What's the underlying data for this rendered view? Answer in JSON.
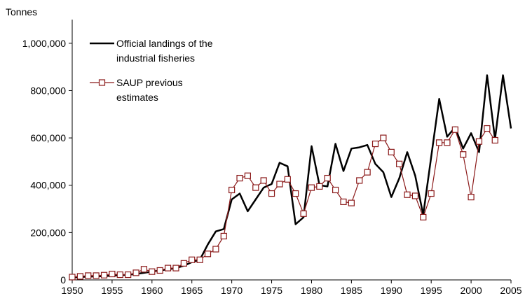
{
  "chart_data": {
    "type": "line",
    "ylabel": "Tonnes",
    "xlim": [
      1950,
      2005
    ],
    "ylim": [
      0,
      1100000
    ],
    "x_ticks": [
      "1950",
      "1955",
      "1960",
      "1965",
      "1970",
      "1975",
      "1980",
      "1985",
      "1990",
      "1995",
      "2000",
      "2005"
    ],
    "y_ticks": [
      "0",
      "200,000",
      "400,000",
      "600,000",
      "800,000",
      "1,000,000"
    ],
    "grid": false,
    "legend_position": "top-left",
    "series": [
      {
        "name": "Official landings of the industrial fisheries",
        "legend_lines": [
          "Official landings of the",
          "industrial fisheries"
        ],
        "color": "#000000",
        "marker": "none",
        "points": [
          [
            1950,
            10000
          ],
          [
            1951,
            12000
          ],
          [
            1952,
            14000
          ],
          [
            1953,
            15000
          ],
          [
            1954,
            16000
          ],
          [
            1955,
            18000
          ],
          [
            1956,
            20000
          ],
          [
            1957,
            22000
          ],
          [
            1958,
            25000
          ],
          [
            1959,
            30000
          ],
          [
            1960,
            35000
          ],
          [
            1961,
            40000
          ],
          [
            1962,
            45000
          ],
          [
            1963,
            50000
          ],
          [
            1964,
            60000
          ],
          [
            1965,
            75000
          ],
          [
            1966,
            85000
          ],
          [
            1967,
            150000
          ],
          [
            1968,
            205000
          ],
          [
            1969,
            215000
          ],
          [
            1970,
            340000
          ],
          [
            1971,
            365000
          ],
          [
            1972,
            290000
          ],
          [
            1973,
            340000
          ],
          [
            1974,
            390000
          ],
          [
            1975,
            405000
          ],
          [
            1976,
            495000
          ],
          [
            1977,
            480000
          ],
          [
            1978,
            235000
          ],
          [
            1979,
            265000
          ],
          [
            1980,
            565000
          ],
          [
            1981,
            400000
          ],
          [
            1982,
            395000
          ],
          [
            1983,
            575000
          ],
          [
            1984,
            460000
          ],
          [
            1985,
            555000
          ],
          [
            1986,
            560000
          ],
          [
            1987,
            570000
          ],
          [
            1988,
            490000
          ],
          [
            1989,
            455000
          ],
          [
            1990,
            350000
          ],
          [
            1991,
            430000
          ],
          [
            1992,
            540000
          ],
          [
            1993,
            440000
          ],
          [
            1994,
            275000
          ],
          [
            1995,
            520000
          ],
          [
            1996,
            765000
          ],
          [
            1997,
            605000
          ],
          [
            1998,
            645000
          ],
          [
            1999,
            555000
          ],
          [
            2000,
            620000
          ],
          [
            2001,
            540000
          ],
          [
            2002,
            865000
          ],
          [
            2003,
            595000
          ],
          [
            2004,
            865000
          ],
          [
            2005,
            640000
          ]
        ]
      },
      {
        "name": "SAUP previous estimates",
        "legend_lines": [
          "SAUP previous",
          "estimates"
        ],
        "color": "#8b1a1a",
        "marker": "square",
        "points": [
          [
            1950,
            12000
          ],
          [
            1951,
            15000
          ],
          [
            1952,
            18000
          ],
          [
            1953,
            18000
          ],
          [
            1954,
            20000
          ],
          [
            1955,
            25000
          ],
          [
            1956,
            22000
          ],
          [
            1957,
            22000
          ],
          [
            1958,
            30000
          ],
          [
            1959,
            45000
          ],
          [
            1960,
            35000
          ],
          [
            1961,
            40000
          ],
          [
            1962,
            50000
          ],
          [
            1963,
            50000
          ],
          [
            1964,
            70000
          ],
          [
            1965,
            85000
          ],
          [
            1966,
            85000
          ],
          [
            1967,
            110000
          ],
          [
            1968,
            130000
          ],
          [
            1969,
            185000
          ],
          [
            1970,
            380000
          ],
          [
            1971,
            430000
          ],
          [
            1972,
            440000
          ],
          [
            1973,
            390000
          ],
          [
            1974,
            420000
          ],
          [
            1975,
            365000
          ],
          [
            1976,
            405000
          ],
          [
            1977,
            425000
          ],
          [
            1978,
            365000
          ],
          [
            1979,
            280000
          ],
          [
            1980,
            390000
          ],
          [
            1981,
            395000
          ],
          [
            1982,
            430000
          ],
          [
            1983,
            380000
          ],
          [
            1984,
            330000
          ],
          [
            1985,
            325000
          ],
          [
            1986,
            420000
          ],
          [
            1987,
            455000
          ],
          [
            1988,
            575000
          ],
          [
            1989,
            600000
          ],
          [
            1990,
            540000
          ],
          [
            1991,
            490000
          ],
          [
            1992,
            360000
          ],
          [
            1993,
            355000
          ],
          [
            1994,
            265000
          ],
          [
            1995,
            365000
          ],
          [
            1996,
            580000
          ],
          [
            1997,
            580000
          ],
          [
            1998,
            635000
          ],
          [
            1999,
            530000
          ],
          [
            2000,
            350000
          ],
          [
            2001,
            585000
          ],
          [
            2002,
            640000
          ],
          [
            2003,
            590000
          ]
        ]
      }
    ]
  }
}
